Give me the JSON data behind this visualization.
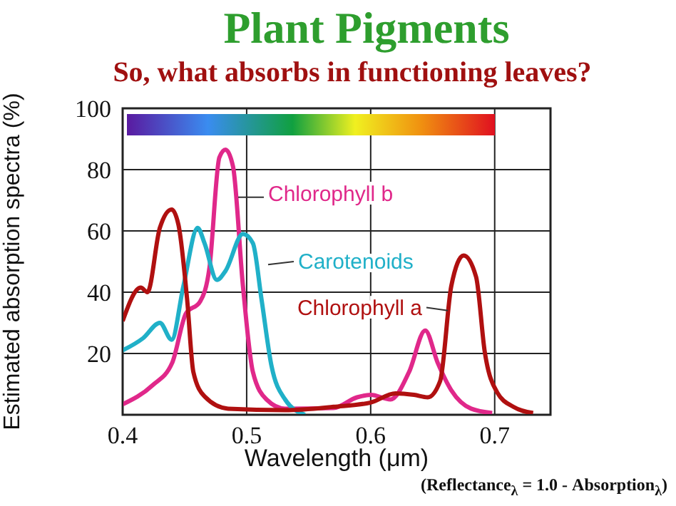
{
  "chart_data": {
    "type": "line",
    "title": "Plant Pigments",
    "subtitle": "So, what absorbs in functioning leaves?",
    "xlabel": "Wavelength (μm)",
    "ylabel": "Estimated absorption spectra (%)",
    "annotations": [
      "(Reflectance$_{λ}$ = 1.0 - Absorption$_{λ}$)"
    ],
    "xlim": [
      0.4,
      0.745
    ],
    "xticks": [
      0.4,
      0.5,
      0.6,
      0.7
    ],
    "ylim": [
      0,
      100
    ],
    "yticks": [
      20,
      40,
      60,
      80,
      100
    ],
    "grid": true,
    "marker": "none",
    "line_style": "solid",
    "series": [
      {
        "name": "Chlorophyll b",
        "color": "#e0288a",
        "x": [
          0.4,
          0.424,
          0.44,
          0.451,
          0.4625,
          0.47,
          0.478,
          0.483,
          0.489,
          0.497,
          0.505,
          0.516,
          0.531,
          0.57,
          0.589,
          0.6,
          0.616,
          0.631,
          0.644,
          0.654,
          0.665,
          0.681,
          0.698
        ],
        "values": [
          3.4,
          9.6,
          17,
          33,
          37,
          48,
          84,
          86.5,
          81,
          42,
          14,
          5,
          2,
          2.2,
          5.7,
          6.5,
          5,
          14,
          27.5,
          17,
          8,
          2,
          0.6
        ]
      },
      {
        "name": "Carotenoids",
        "color": "#20b0c8",
        "x": [
          0.4,
          0.4165,
          0.43,
          0.4395,
          0.449,
          0.4605,
          0.466,
          0.476,
          0.483,
          0.497,
          0.505,
          0.512,
          0.52,
          0.531,
          0.547
        ],
        "values": [
          21,
          25,
          30,
          24.5,
          42,
          61,
          56,
          44,
          47,
          59,
          56,
          37.6,
          16,
          5,
          0
        ]
      },
      {
        "name": "Chlorophyll a",
        "color": "#b01010",
        "x": [
          0.4,
          0.4146,
          0.42,
          0.43,
          0.4395,
          0.445,
          0.452,
          0.457,
          0.466,
          0.485,
          0.531,
          0.57,
          0.6,
          0.62,
          0.635,
          0.646,
          0.656,
          0.665,
          0.675,
          0.685,
          0.692,
          0.702,
          0.715,
          0.731
        ],
        "values": [
          30.6,
          41.5,
          40,
          61,
          67,
          62,
          37.6,
          14,
          6,
          2,
          1.5,
          2.6,
          4,
          7,
          6.5,
          5.7,
          11,
          42,
          52,
          45,
          20.5,
          7.3,
          2.6,
          0.6
        ]
      }
    ]
  }
}
